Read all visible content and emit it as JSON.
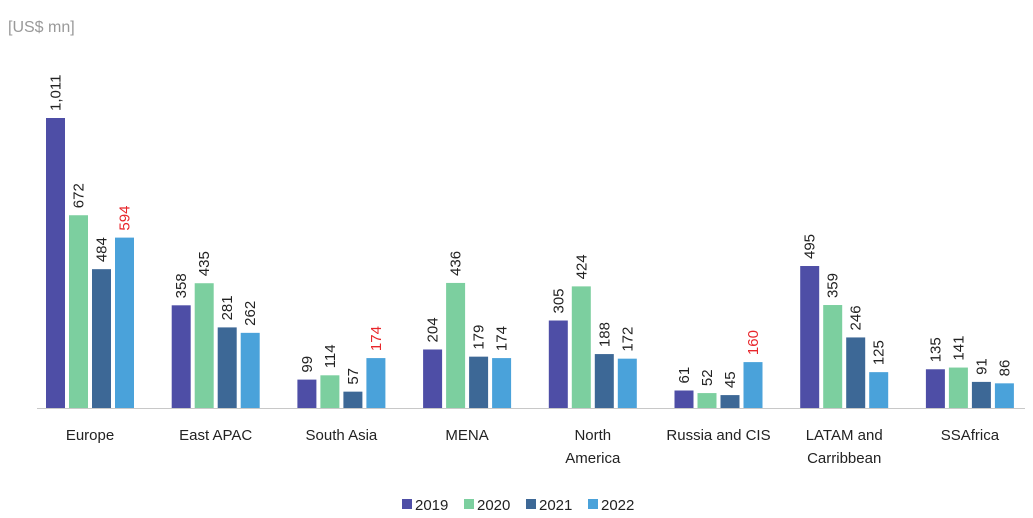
{
  "chart_data": {
    "type": "bar",
    "unit_label": "[US$ mn]",
    "categories": [
      "Europe",
      "East APAC",
      "South Asia",
      "MENA",
      "North America",
      "Russia and CIS",
      "LATAM and Carribbean",
      "SSAfrica"
    ],
    "series": [
      {
        "name": "2019",
        "color": "#4e4ea6",
        "values": [
          1011,
          358,
          99,
          204,
          305,
          61,
          495,
          135
        ],
        "value_labels": [
          "1,011",
          "358",
          "99",
          "204",
          "305",
          "61",
          "495",
          "135"
        ]
      },
      {
        "name": "2020",
        "color": "#7ccf9f",
        "values": [
          672,
          435,
          114,
          436,
          424,
          52,
          359,
          141
        ]
      },
      {
        "name": "2021",
        "color": "#3d6896",
        "values": [
          484,
          281,
          57,
          179,
          188,
          45,
          246,
          91
        ]
      },
      {
        "name": "2022",
        "color": "#4aa2da",
        "values": [
          594,
          262,
          174,
          174,
          172,
          160,
          125,
          86
        ],
        "label_colors": [
          "#e8262b",
          "#222222",
          "#e8262b",
          "#222222",
          "#222222",
          "#e8262b",
          "#222222",
          "#222222"
        ]
      }
    ],
    "legend": "bottom"
  }
}
